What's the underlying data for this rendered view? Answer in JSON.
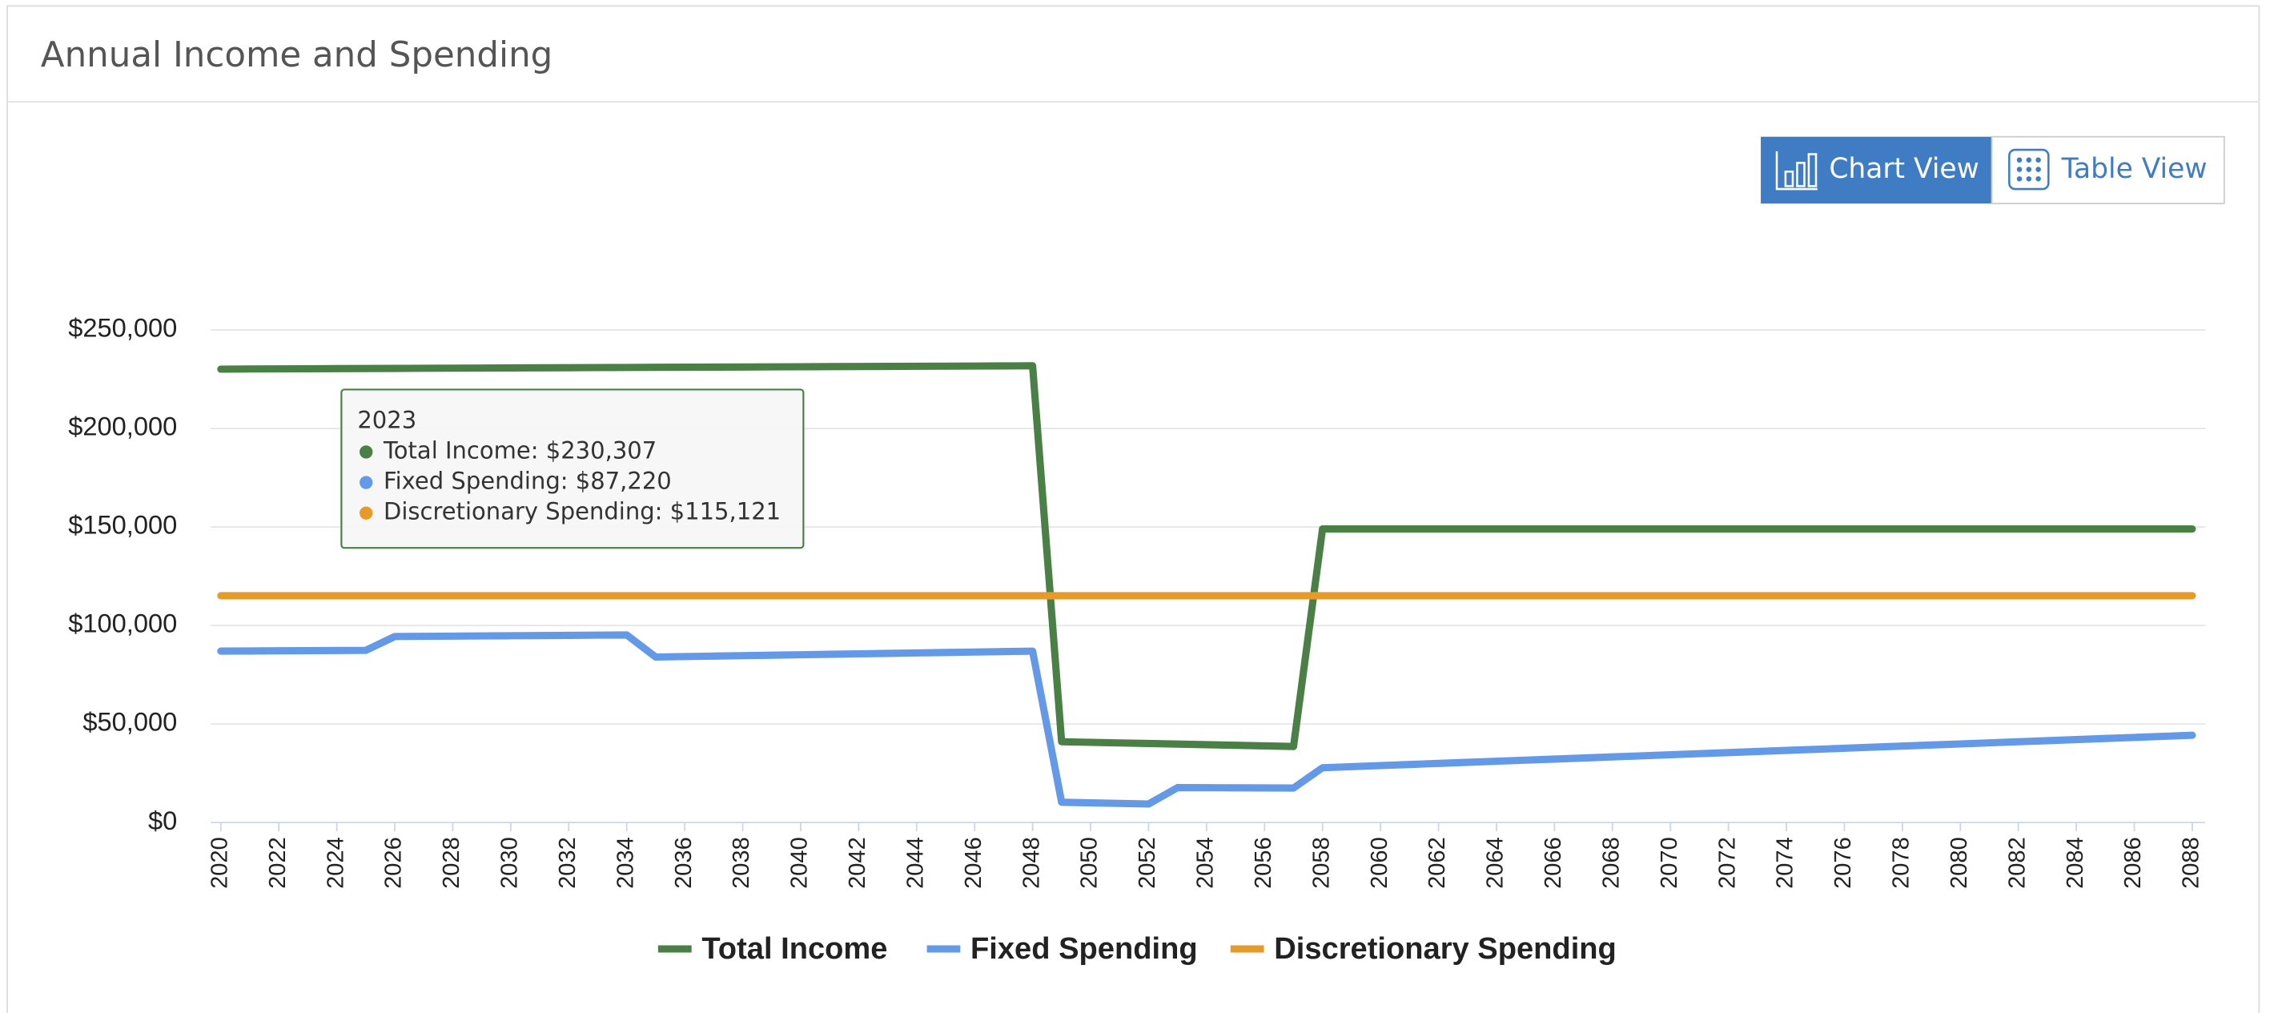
{
  "header": {
    "title": "Annual Income and Spending"
  },
  "view_toggle": {
    "chart": "Chart View",
    "table": "Table View"
  },
  "chart_data": {
    "type": "line",
    "x": [
      2020,
      2021,
      2022,
      2023,
      2024,
      2025,
      2026,
      2027,
      2028,
      2029,
      2030,
      2031,
      2032,
      2033,
      2034,
      2035,
      2036,
      2037,
      2038,
      2039,
      2040,
      2041,
      2042,
      2043,
      2044,
      2045,
      2046,
      2047,
      2048,
      2049,
      2050,
      2051,
      2052,
      2053,
      2054,
      2055,
      2056,
      2057,
      2058,
      2059,
      2060,
      2061,
      2062,
      2063,
      2064,
      2065,
      2066,
      2067,
      2068,
      2069,
      2070,
      2071,
      2072,
      2073,
      2074,
      2075,
      2076,
      2077,
      2078,
      2079,
      2080,
      2081,
      2082,
      2083,
      2084,
      2085,
      2086,
      2087,
      2088
    ],
    "xlim": [
      2020,
      2088
    ],
    "xticks": [
      2020,
      2022,
      2024,
      2026,
      2028,
      2030,
      2032,
      2034,
      2036,
      2038,
      2040,
      2042,
      2044,
      2046,
      2048,
      2050,
      2052,
      2054,
      2056,
      2058,
      2060,
      2062,
      2064,
      2066,
      2068,
      2070,
      2072,
      2074,
      2076,
      2078,
      2080,
      2082,
      2084,
      2086,
      2088
    ],
    "ylim": [
      0,
      250000
    ],
    "yticks": [
      {
        "value": 0,
        "label": "$0"
      },
      {
        "value": 50000,
        "label": "$50,000"
      },
      {
        "value": 100000,
        "label": "$100,000"
      },
      {
        "value": 150000,
        "label": "$150,000"
      },
      {
        "value": 200000,
        "label": "$200,000"
      },
      {
        "value": 250000,
        "label": "$250,000"
      }
    ],
    "grid": true,
    "legend": "bottom",
    "series": [
      {
        "name": "Total Income",
        "color": "#4a7f46",
        "values": [
          230100,
          230200,
          230250,
          230307,
          230370,
          230430,
          230490,
          230550,
          230610,
          230670,
          230730,
          230790,
          230850,
          230910,
          230970,
          231030,
          231090,
          231150,
          231210,
          231270,
          231330,
          231390,
          231450,
          231510,
          231570,
          231630,
          231690,
          231750,
          231810,
          41000,
          40700,
          40400,
          40100,
          39800,
          39500,
          39200,
          38900,
          38600,
          149000,
          149000,
          149000,
          149000,
          149000,
          149000,
          149000,
          149000,
          149000,
          149000,
          149000,
          149000,
          149000,
          149000,
          149000,
          149000,
          149000,
          149000,
          149000,
          149000,
          149000,
          149000,
          149000,
          149000,
          149000,
          149000,
          149000,
          149000,
          149000,
          149000,
          149000
        ]
      },
      {
        "name": "Fixed Spending",
        "color": "#6399e6",
        "values": [
          87000,
          87070,
          87150,
          87220,
          87300,
          87380,
          94400,
          94500,
          94600,
          94700,
          94800,
          94900,
          95000,
          95100,
          95200,
          84000,
          84230,
          84460,
          84690,
          84920,
          85150,
          85380,
          85610,
          85840,
          86070,
          86300,
          86530,
          86760,
          86990,
          10300,
          10000,
          9700,
          9400,
          17700,
          17650,
          17600,
          17550,
          17500,
          27800,
          28350,
          28900,
          29450,
          30000,
          30550,
          31100,
          31650,
          32200,
          32750,
          33300,
          33850,
          34400,
          34950,
          35500,
          36050,
          36600,
          37150,
          37700,
          38250,
          38800,
          39350,
          39900,
          40450,
          41000,
          41550,
          42100,
          42650,
          43200,
          43750,
          44300
        ]
      },
      {
        "name": "Discretionary Spending",
        "color": "#e69a28",
        "values": [
          115121,
          115121,
          115121,
          115121,
          115121,
          115121,
          115121,
          115121,
          115121,
          115121,
          115121,
          115121,
          115121,
          115121,
          115121,
          115121,
          115121,
          115121,
          115121,
          115121,
          115121,
          115121,
          115121,
          115121,
          115121,
          115121,
          115121,
          115121,
          115121,
          115121,
          115121,
          115121,
          115121,
          115121,
          115121,
          115121,
          115121,
          115121,
          115121,
          115121,
          115121,
          115121,
          115121,
          115121,
          115121,
          115121,
          115121,
          115121,
          115121,
          115121,
          115121,
          115121,
          115121,
          115121,
          115121,
          115121,
          115121,
          115121,
          115121,
          115121,
          115121,
          115121,
          115121,
          115121,
          115121,
          115121,
          115121,
          115121,
          115121
        ]
      }
    ],
    "tooltip": {
      "title": "2023",
      "items": [
        "Total Income: $230,307",
        "Fixed Spending: $87,220",
        "Discretionary Spending: $115,121"
      ]
    }
  }
}
